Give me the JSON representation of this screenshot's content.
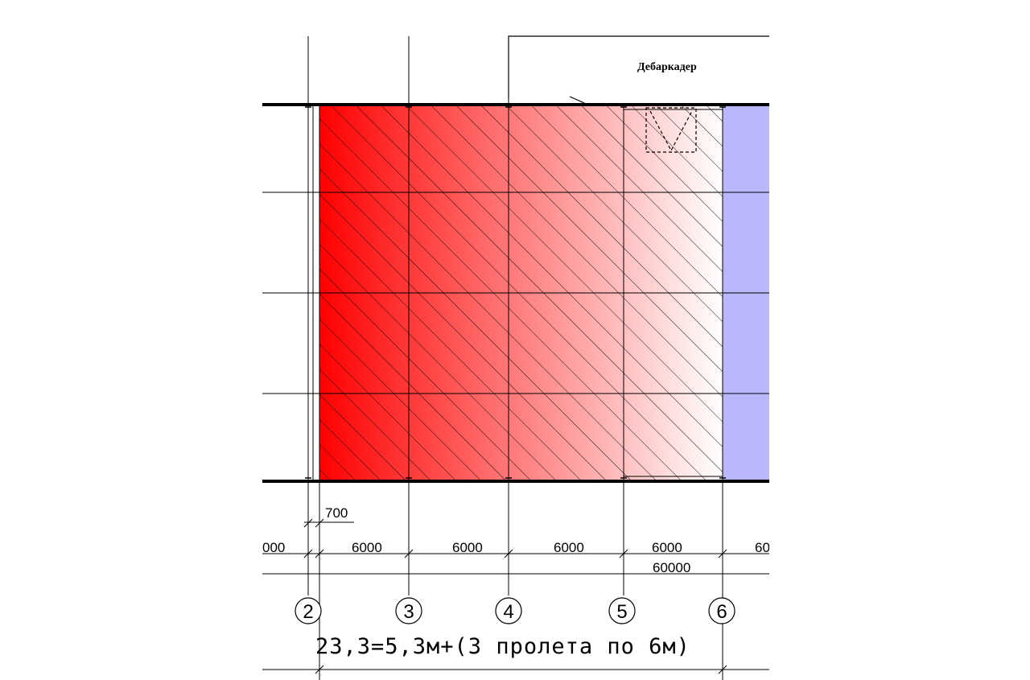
{
  "labels": {
    "dock": "Дебаркадер",
    "offset_dim": "700",
    "left_cut_dim": "000",
    "right_cut_dim": "60",
    "span_dims": [
      "6000",
      "6000",
      "6000",
      "6000"
    ],
    "total_dim": "60000",
    "axes": [
      "2",
      "3",
      "4",
      "5",
      "6"
    ],
    "title": "23,3=5,3м+(3 пролета по 6м)"
  },
  "colors": {
    "hatch_gradient_start": "#ff0000",
    "hatch_gradient_end": "#ffffff",
    "adjacent_zone": "#b8b8fa",
    "lines": "#000000"
  }
}
